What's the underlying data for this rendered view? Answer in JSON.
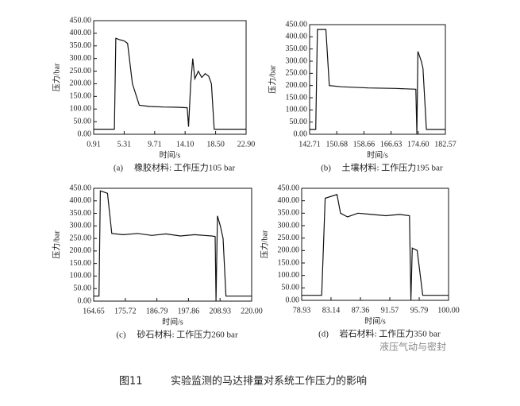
{
  "chart_data": [
    {
      "type": "line",
      "label": "(a)",
      "caption": "橡胶材料: 工作压力105 bar",
      "xlabel": "时间/s",
      "ylabel": "压力/bar",
      "color": "#111111",
      "xlim": [
        0.91,
        22.9
      ],
      "xticks": [
        0.91,
        5.31,
        9.71,
        {
          "value": 14.1,
          "label": "14.10"
        },
        {
          "value": 18.5,
          "label": "18.50"
        },
        {
          "value": 22.9,
          "label": "22.90"
        }
      ],
      "ylim": [
        0,
        450
      ],
      "yticks": [
        {
          "value": 0,
          "label": "0.00"
        },
        {
          "value": 50,
          "label": "50.00"
        },
        {
          "value": 100,
          "label": "100.00"
        },
        {
          "value": 150,
          "label": "150.00"
        },
        {
          "value": 200,
          "label": "200.00"
        },
        {
          "value": 250,
          "label": "250.00"
        },
        {
          "value": 300,
          "label": "300.00"
        },
        {
          "value": 350,
          "label": "350.00"
        },
        {
          "value": 400,
          "label": "400.00"
        },
        {
          "value": 450,
          "label": "450.00"
        }
      ],
      "x": [
        0.91,
        3.9,
        4.1,
        4.6,
        5.3,
        5.8,
        6.5,
        7.5,
        9.0,
        11.0,
        13.0,
        14.4,
        14.6,
        14.9,
        15.2,
        15.5,
        16.0,
        16.5,
        17.0,
        17.5,
        17.9,
        18.3,
        20.0,
        22.9
      ],
      "values": [
        20,
        20,
        380,
        375,
        370,
        360,
        200,
        115,
        110,
        108,
        107,
        105,
        30,
        200,
        300,
        220,
        250,
        225,
        240,
        230,
        200,
        20,
        20,
        20
      ]
    },
    {
      "type": "line",
      "label": "(b)",
      "caption": "土壤材料: 工作压力195 bar",
      "xlabel": "时间/s",
      "ylabel": "压力/bar",
      "color": "#111111",
      "xlim": [
        142.71,
        182.57
      ],
      "xticks": [
        142.71,
        150.68,
        158.66,
        166.63,
        {
          "value": 174.6,
          "label": "174.60"
        },
        182.57
      ],
      "ylim": [
        0,
        450
      ],
      "yticks": [
        {
          "value": 0,
          "label": "0.00"
        },
        {
          "value": 50,
          "label": "50.00"
        },
        {
          "value": 100,
          "label": "100.00"
        },
        {
          "value": 150,
          "label": "150.00"
        },
        {
          "value": 200,
          "label": "200.00"
        },
        {
          "value": 250,
          "label": "250.00"
        },
        {
          "value": 300,
          "label": "300.00"
        },
        {
          "value": 350,
          "label": "350.00"
        },
        {
          "value": 400,
          "label": "400.00"
        },
        {
          "value": 450,
          "label": "450.00"
        }
      ],
      "x": [
        142.71,
        144.5,
        145.0,
        147.5,
        148.5,
        152,
        160,
        168,
        173.9,
        174.2,
        174.5,
        175.5,
        176.0,
        177.0,
        182.57
      ],
      "values": [
        20,
        20,
        430,
        430,
        200,
        195,
        190,
        188,
        185,
        0,
        340,
        300,
        270,
        20,
        20
      ]
    },
    {
      "type": "line",
      "label": "(c)",
      "caption": "砂石材料: 工作压力260 bar",
      "xlabel": "时间/s",
      "ylabel": "压力/bar",
      "color": "#111111",
      "xlim": [
        164.65,
        220.0
      ],
      "xticks": [
        164.65,
        175.72,
        186.79,
        197.86,
        208.93,
        {
          "value": 220,
          "label": "220.00"
        }
      ],
      "ylim": [
        0,
        450
      ],
      "yticks": [
        {
          "value": 0,
          "label": "0.00"
        },
        {
          "value": 50,
          "label": "50.00"
        },
        {
          "value": 100,
          "label": "100.00"
        },
        {
          "value": 150,
          "label": "150.00"
        },
        {
          "value": 200,
          "label": "200.00"
        },
        {
          "value": 250,
          "label": "250.00"
        },
        {
          "value": 300,
          "label": "300.00"
        },
        {
          "value": 350,
          "label": "350.00"
        },
        {
          "value": 400,
          "label": "400.00"
        },
        {
          "value": 450,
          "label": "450.00"
        }
      ],
      "x": [
        164.65,
        166.5,
        167.0,
        169.5,
        171.0,
        175,
        180,
        185,
        190,
        195,
        200,
        206,
        207.2,
        207.5,
        208.0,
        209.0,
        210.0,
        211.0,
        220.0
      ],
      "values": [
        20,
        20,
        440,
        430,
        270,
        265,
        270,
        262,
        268,
        260,
        265,
        260,
        258,
        0,
        340,
        300,
        250,
        20,
        20
      ]
    },
    {
      "type": "line",
      "label": "(d)",
      "caption": "岩石材料: 工作压力350 bar",
      "xlabel": "时间/s",
      "ylabel": "压力/bar",
      "color": "#111111",
      "xlim": [
        78.93,
        100.0
      ],
      "xticks": [
        78.93,
        83.14,
        87.36,
        91.57,
        95.79,
        {
          "value": 100,
          "label": "100.00"
        }
      ],
      "ylim": [
        0,
        450
      ],
      "yticks": [
        {
          "value": 0,
          "label": "0.00"
        },
        {
          "value": 50,
          "label": "50.00"
        },
        {
          "value": 100,
          "label": "100.00"
        },
        {
          "value": 150,
          "label": "150.00"
        },
        {
          "value": 200,
          "label": "200.00"
        },
        {
          "value": 250,
          "label": "250.00"
        },
        {
          "value": 300,
          "label": "300.00"
        },
        {
          "value": 350,
          "label": "350.00"
        },
        {
          "value": 400,
          "label": "400.00"
        },
        {
          "value": 450,
          "label": "450.00"
        }
      ],
      "x": [
        78.93,
        81.8,
        82.3,
        84.0,
        84.5,
        85.5,
        87,
        89,
        91,
        93,
        94.4,
        94.6,
        94.8,
        95.5,
        96.3,
        100
      ],
      "values": [
        20,
        20,
        410,
        425,
        350,
        335,
        350,
        345,
        340,
        345,
        340,
        0,
        210,
        200,
        20,
        20
      ]
    }
  ],
  "figure": {
    "number": "图11",
    "caption": "实验监测的马达排量对系统工作压力的影响",
    "watermark": "液压气动与密封"
  }
}
